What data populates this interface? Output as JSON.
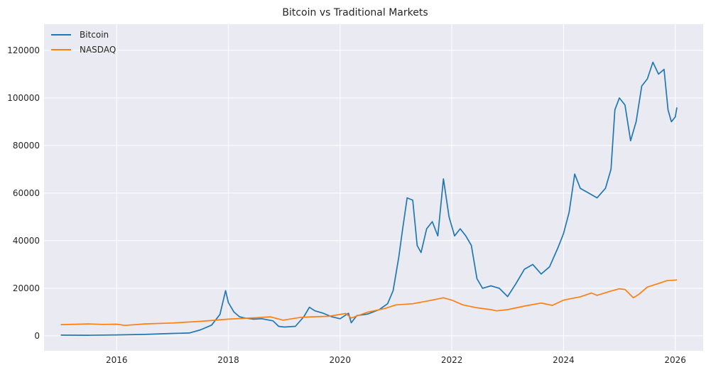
{
  "chart_data": {
    "type": "line",
    "title": "Bitcoin vs Traditional Markets",
    "xlabel": "",
    "ylabel": "",
    "xlim": [
      2014.7,
      2026.5
    ],
    "ylim": [
      -6300,
      131000
    ],
    "grid": true,
    "legend": "top-left",
    "x_ticks": [
      2016,
      2018,
      2020,
      2022,
      2024,
      2026
    ],
    "y_ticks": [
      0,
      20000,
      40000,
      60000,
      80000,
      100000,
      120000
    ],
    "series": [
      {
        "name": "Bitcoin",
        "color": "#1f77b4",
        "x": [
          2015.0,
          2015.5,
          2016.0,
          2016.5,
          2017.0,
          2017.3,
          2017.5,
          2017.7,
          2017.85,
          2017.95,
          2018.0,
          2018.1,
          2018.2,
          2018.3,
          2018.45,
          2018.6,
          2018.8,
          2018.9,
          2019.0,
          2019.2,
          2019.35,
          2019.45,
          2019.55,
          2019.7,
          2019.85,
          2020.0,
          2020.15,
          2020.2,
          2020.3,
          2020.5,
          2020.7,
          2020.85,
          2020.95,
          2021.05,
          2021.12,
          2021.2,
          2021.3,
          2021.38,
          2021.45,
          2021.55,
          2021.65,
          2021.75,
          2021.85,
          2021.95,
          2022.05,
          2022.15,
          2022.25,
          2022.35,
          2022.45,
          2022.55,
          2022.7,
          2022.85,
          2023.0,
          2023.15,
          2023.3,
          2023.45,
          2023.6,
          2023.75,
          2023.9,
          2024.0,
          2024.1,
          2024.2,
          2024.3,
          2024.45,
          2024.6,
          2024.75,
          2024.85,
          2024.92,
          2025.0,
          2025.1,
          2025.2,
          2025.3,
          2025.4,
          2025.5,
          2025.6,
          2025.7,
          2025.8,
          2025.87,
          2025.93,
          2026.0,
          2026.03
        ],
        "values": [
          300,
          250,
          400,
          600,
          1000,
          1200,
          2500,
          4500,
          9000,
          19000,
          14000,
          10000,
          8000,
          7500,
          7000,
          7200,
          6300,
          4000,
          3700,
          4000,
          8000,
          12000,
          10500,
          9500,
          8000,
          7200,
          9500,
          5500,
          8500,
          9200,
          11000,
          13500,
          19000,
          33000,
          45000,
          58000,
          57000,
          38000,
          35000,
          45000,
          48000,
          42000,
          66000,
          50000,
          42000,
          45000,
          42000,
          38000,
          24000,
          20000,
          21000,
          20000,
          16500,
          22000,
          28000,
          30000,
          26000,
          29000,
          37000,
          43000,
          52000,
          68000,
          62000,
          60000,
          58000,
          62000,
          70000,
          95000,
          100000,
          97000,
          82000,
          90000,
          105000,
          108000,
          115000,
          110000,
          112000,
          95000,
          90000,
          92000,
          96000
        ]
      },
      {
        "name": "NASDAQ",
        "color": "#ff7f0e",
        "x": [
          2015.0,
          2015.5,
          2015.75,
          2016.0,
          2016.15,
          2016.5,
          2017.0,
          2017.5,
          2018.0,
          2018.5,
          2018.75,
          2018.98,
          2019.3,
          2019.5,
          2019.8,
          2020.1,
          2020.2,
          2020.5,
          2020.8,
          2021.0,
          2021.3,
          2021.6,
          2021.85,
          2022.0,
          2022.2,
          2022.45,
          2022.7,
          2022.8,
          2023.0,
          2023.3,
          2023.6,
          2023.8,
          2024.0,
          2024.3,
          2024.5,
          2024.6,
          2024.8,
          2025.0,
          2025.1,
          2025.25,
          2025.35,
          2025.5,
          2025.7,
          2025.85,
          2026.03
        ],
        "values": [
          4700,
          5000,
          4800,
          4900,
          4400,
          5000,
          5400,
          6100,
          7000,
          7600,
          8000,
          6600,
          7800,
          8000,
          8200,
          9400,
          7500,
          10000,
          11500,
          13000,
          13500,
          14800,
          16000,
          15000,
          13000,
          11800,
          11000,
          10500,
          11000,
          12500,
          13800,
          12800,
          15000,
          16400,
          18000,
          17000,
          18500,
          19800,
          19500,
          16000,
          17500,
          20500,
          22000,
          23200,
          23500
        ]
      }
    ]
  }
}
